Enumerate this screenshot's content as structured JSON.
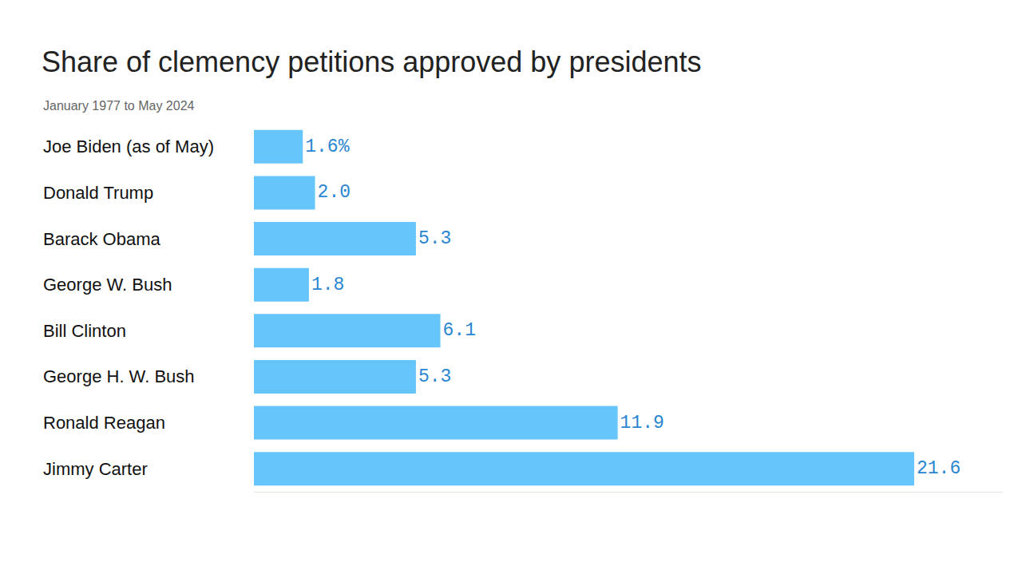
{
  "chart_data": {
    "type": "bar",
    "orientation": "horizontal",
    "title": "Share of clemency petitions approved by presidents",
    "subtitle": "January 1977 to May 2024",
    "categories": [
      "Joe Biden (as of May)",
      "Donald Trump",
      "Barack Obama",
      "George W. Bush",
      "Bill Clinton",
      "George H. W. Bush",
      "Ronald Reagan",
      "Jimmy Carter"
    ],
    "values": [
      1.6,
      2.0,
      5.3,
      1.8,
      6.1,
      5.3,
      11.9,
      21.6
    ],
    "value_labels": [
      "1.6%",
      "2.0",
      "5.3",
      "1.8",
      "6.1",
      "5.3",
      "11.9",
      "21.6"
    ],
    "data_labels": true,
    "color": "#66c6fb",
    "xlim": [
      0,
      24.5
    ],
    "xticks": [],
    "grid": false,
    "tick_labels": "y"
  }
}
